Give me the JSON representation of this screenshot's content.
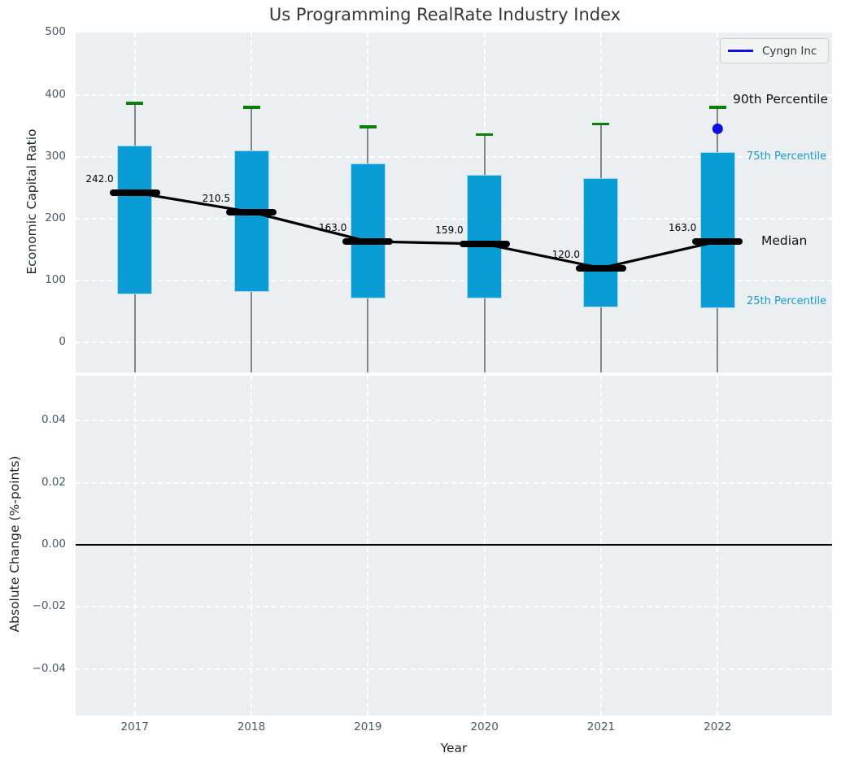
{
  "chart_data": {
    "type": "boxplot",
    "title": "Us Programming RealRate Industry Index",
    "xlabel": "Year",
    "categories": [
      "2017",
      "2018",
      "2019",
      "2020",
      "2021",
      "2022"
    ],
    "top_panel": {
      "ylabel": "Economic Capital Ratio",
      "yticks": [
        "0",
        "100",
        "200",
        "300",
        "400",
        "500"
      ],
      "ytick_values": [
        0,
        100,
        200,
        300,
        400,
        500
      ],
      "ylim": [
        -48,
        500
      ],
      "grid": "white dashed",
      "series": [
        {
          "name": "90th Percentile",
          "values": [
            386,
            380,
            348,
            336,
            353,
            380
          ]
        },
        {
          "name": "75th Percentile",
          "values": [
            318,
            310,
            289,
            270,
            265,
            308
          ]
        },
        {
          "name": "Median",
          "values": [
            242.0,
            210.5,
            163.0,
            159.0,
            120.0,
            163.0
          ]
        },
        {
          "name": "25th Percentile",
          "values": [
            78,
            81,
            71,
            71,
            57,
            55
          ]
        }
      ],
      "median_labels": [
        "242.0",
        "210.5",
        "163.0",
        "159.0",
        "120.0",
        "163.0"
      ],
      "right_labels": [
        "90th Percentile",
        "75th Percentile",
        "Median",
        "25th Percentile"
      ],
      "company_point": {
        "name": "Cyngn Inc",
        "year": "2022",
        "value": 345
      }
    },
    "bottom_panel": {
      "ylabel": "Absolute Change (%-points)",
      "yticks": [
        "0.04",
        "0.02",
        "0.00",
        "−0.02",
        "−0.04"
      ],
      "ytick_values": [
        0.04,
        0.02,
        0.0,
        -0.02,
        -0.04
      ],
      "ylim": [
        -0.055,
        0.055
      ],
      "zero_line": 0.0,
      "grid": "white dashed",
      "series": []
    },
    "legend": {
      "position": "upper right",
      "entries": [
        {
          "label": "Cyngn Inc",
          "color": "#0f0fe0"
        }
      ]
    },
    "colors": {
      "box": "#0a9cd4",
      "box_edge": "#a9d9ee",
      "percentile_cap": "#0a800a",
      "whisker": "#858585",
      "median_line": "#000000",
      "company_marker": "#0f0fe0",
      "plot_background": "#ebeff1",
      "grid": "#ffffff",
      "tick_text": "#45586c"
    }
  }
}
